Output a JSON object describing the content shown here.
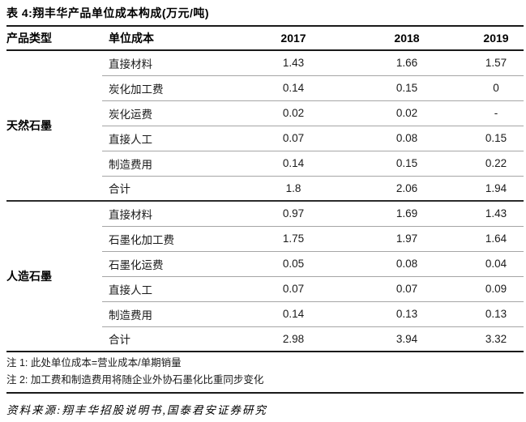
{
  "title": "表 4:翔丰华产品单位成本构成(万元/吨)",
  "header": {
    "col_product": "产品类型",
    "col_cost": "单位成本",
    "years": [
      "2017",
      "2018",
      "2019"
    ]
  },
  "sections": [
    {
      "category": "天然石墨",
      "rows": [
        {
          "label": "直接材料",
          "values": [
            "1.43",
            "1.66",
            "1.57"
          ]
        },
        {
          "label": "炭化加工费",
          "values": [
            "0.14",
            "0.15",
            "0"
          ]
        },
        {
          "label": "炭化运费",
          "values": [
            "0.02",
            "0.02",
            "-"
          ]
        },
        {
          "label": "直接人工",
          "values": [
            "0.07",
            "0.08",
            "0.15"
          ]
        },
        {
          "label": "制造费用",
          "values": [
            "0.14",
            "0.15",
            "0.22"
          ]
        },
        {
          "label": "合计",
          "values": [
            "1.8",
            "2.06",
            "1.94"
          ]
        }
      ]
    },
    {
      "category": "人造石墨",
      "rows": [
        {
          "label": "直接材料",
          "values": [
            "0.97",
            "1.69",
            "1.43"
          ]
        },
        {
          "label": "石墨化加工费",
          "values": [
            "1.75",
            "1.97",
            "1.64"
          ]
        },
        {
          "label": "石墨化运费",
          "values": [
            "0.05",
            "0.08",
            "0.04"
          ]
        },
        {
          "label": "直接人工",
          "values": [
            "0.07",
            "0.07",
            "0.09"
          ]
        },
        {
          "label": "制造费用",
          "values": [
            "0.14",
            "0.13",
            "0.13"
          ]
        },
        {
          "label": "合计",
          "values": [
            "2.98",
            "3.94",
            "3.32"
          ]
        }
      ]
    }
  ],
  "notes": [
    "注 1: 此处单位成本=营业成本/单期销量",
    "注 2: 加工费和制造费用将随企业外协石墨化比重同步变化"
  ],
  "source": "资料来源:翔丰华招股说明书,国泰君安证券研究",
  "colors": {
    "text": "#111111",
    "thick_rule": "#1a1a1a",
    "thin_rule": "#a6a6a6"
  }
}
